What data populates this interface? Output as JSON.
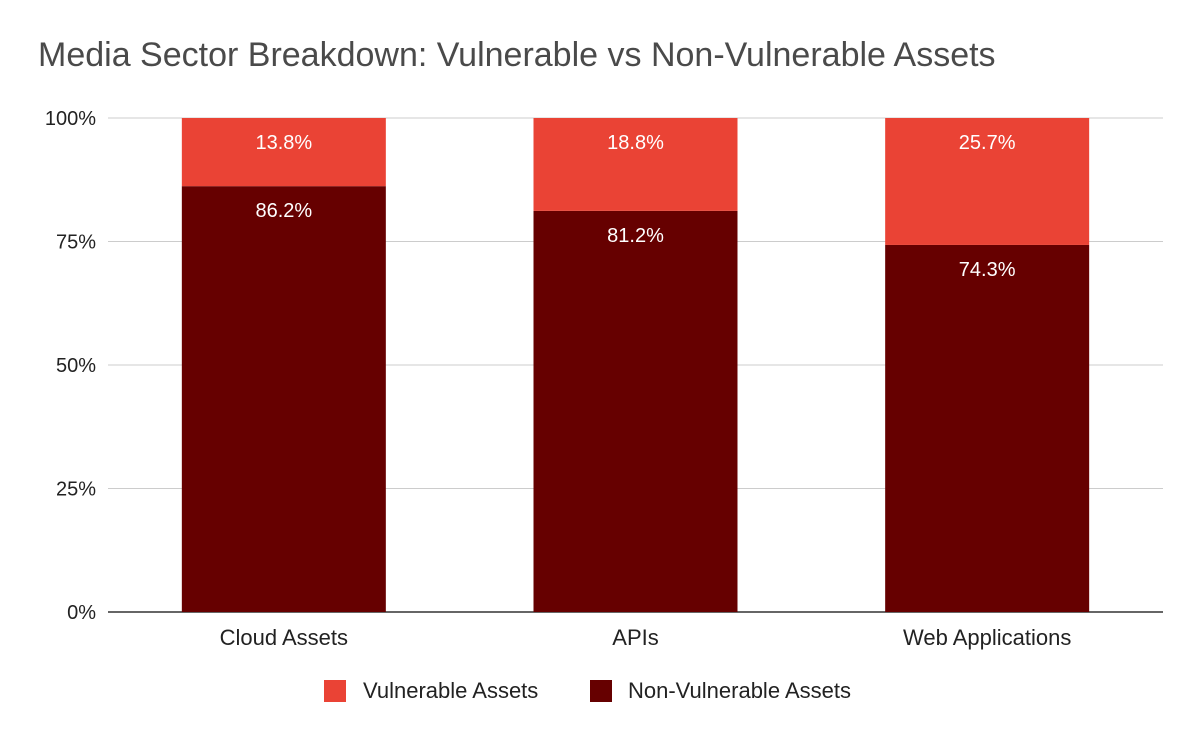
{
  "chart_data": {
    "type": "bar",
    "stacked": true,
    "title": "Media Sector Breakdown: Vulnerable vs Non-Vulnerable Assets",
    "categories": [
      "Cloud Assets",
      "APIs",
      "Web Applications"
    ],
    "series": [
      {
        "name": "Vulnerable Assets",
        "color": "#ea4335",
        "values": [
          13.8,
          18.8,
          25.7
        ],
        "labels": [
          "13.8%",
          "18.8%",
          "25.7%"
        ]
      },
      {
        "name": "Non-Vulnerable Assets",
        "color": "#660000",
        "values": [
          86.2,
          81.2,
          74.3
        ],
        "labels": [
          "86.2%",
          "81.2%",
          "74.3%"
        ]
      }
    ],
    "ylim": [
      0,
      100
    ],
    "yticks": [
      0,
      25,
      50,
      75,
      100
    ],
    "ytick_labels": [
      "0%",
      "25%",
      "50%",
      "75%",
      "100%"
    ],
    "grid": true,
    "legend_position": "bottom",
    "xlabel": "",
    "ylabel": ""
  }
}
